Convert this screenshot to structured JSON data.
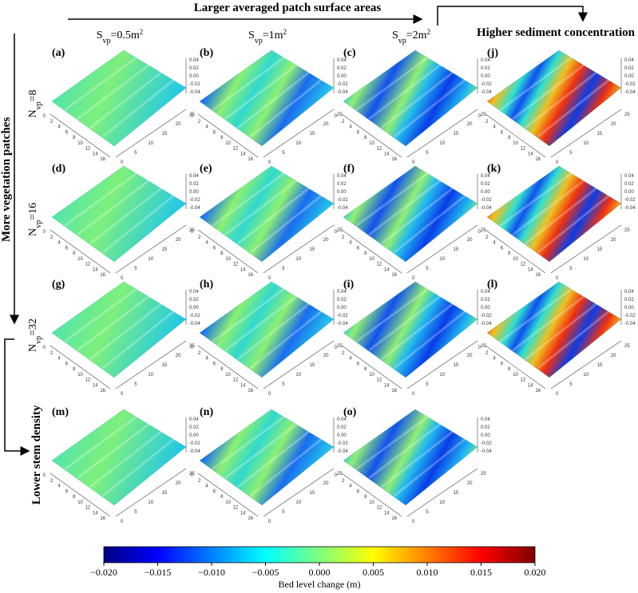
{
  "header": {
    "top_arrow": "Larger averaged patch surface areas",
    "right_label": "Higher sediment concentration",
    "left_arrow": "More vegetation patches",
    "bottom_left": "Lower stem density"
  },
  "columns": [
    {
      "symbol": "S",
      "sub": "vp",
      "value": "=0.5m",
      "sup": "2"
    },
    {
      "symbol": "S",
      "sub": "vp",
      "value": "=1m",
      "sup": "2"
    },
    {
      "symbol": "S",
      "sub": "vp",
      "value": "=2m",
      "sup": "2"
    }
  ],
  "rows": [
    {
      "symbol": "N",
      "sub": "vp",
      "value": "=8"
    },
    {
      "symbol": "N",
      "sub": "vp",
      "value": "=16"
    },
    {
      "symbol": "N",
      "sub": "vp",
      "value": "=32"
    }
  ],
  "panels": [
    [
      "(a)",
      "(b)",
      "(c)",
      "(j)"
    ],
    [
      "(d)",
      "(e)",
      "(f)",
      "(k)"
    ],
    [
      "(g)",
      "(h)",
      "(i)",
      "(l)"
    ],
    [
      "(m)",
      "(n)",
      "(o)"
    ]
  ],
  "z_ticks": [
    "0.04",
    "0.02",
    "0.00",
    "-0.02",
    "-0.04"
  ],
  "x_ticks": [
    "0",
    "2",
    "4",
    "6",
    "8",
    "10",
    "12",
    "14",
    "16"
  ],
  "y_ticks": [
    "0",
    "5",
    "10",
    "15",
    "20",
    "25"
  ],
  "colorbar": {
    "label": "Bed level change (m)",
    "lim": [
      -0.02,
      0.02
    ],
    "colors": [
      "#00007f",
      "#0000ff",
      "#007fff",
      "#00ffff",
      "#7fff7f",
      "#ffff00",
      "#ff7f00",
      "#ff0000",
      "#7f0000"
    ],
    "ticks": [
      {
        "value": -0.02,
        "label": "−0.020"
      },
      {
        "value": -0.015,
        "label": "−0.015"
      },
      {
        "value": -0.01,
        "label": "−0.010"
      },
      {
        "value": -0.005,
        "label": "−0.005"
      },
      {
        "value": 0,
        "label": "0.000"
      },
      {
        "value": 0.005,
        "label": "0.005"
      },
      {
        "value": 0.01,
        "label": "0.010"
      },
      {
        "value": 0.015,
        "label": "0.015"
      },
      {
        "value": 0.02,
        "label": "0.020"
      }
    ]
  }
}
